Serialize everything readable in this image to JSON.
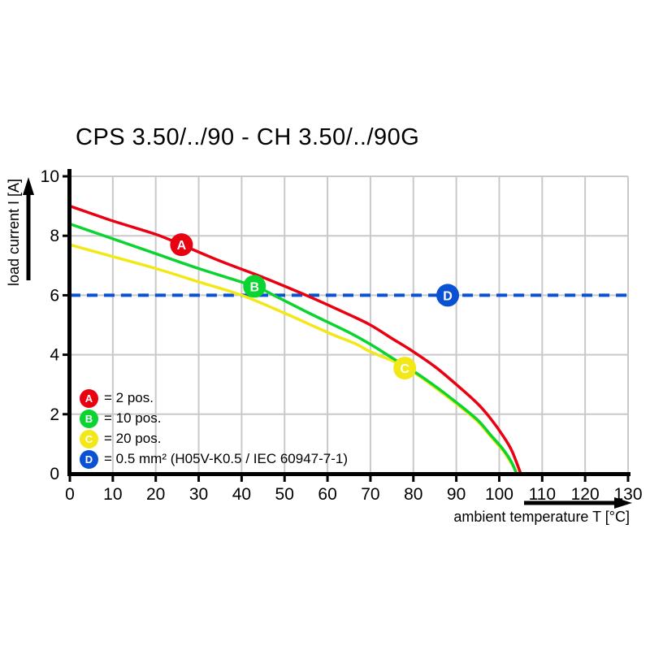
{
  "title": "CPS 3.50/../90 - CH 3.50/../90G",
  "colors": {
    "red": "#ea0011",
    "green": "#0ad42f",
    "yellow": "#f2e818",
    "blue": "#0b51d3",
    "grid": "#c9c9c9",
    "axis": "#000000",
    "text": "#000000",
    "marker_letter": "#ffffff"
  },
  "chart_data": {
    "type": "line",
    "title": "CPS 3.50/../90 - CH 3.50/../90G",
    "xlabel": "ambient temperature T [°C]",
    "ylabel": "load current I [A]",
    "xlim": [
      0,
      130
    ],
    "ylim": [
      0,
      10
    ],
    "xticks": [
      0,
      10,
      20,
      30,
      40,
      50,
      60,
      70,
      80,
      90,
      100,
      110,
      120,
      130
    ],
    "yticks": [
      0,
      2,
      4,
      6,
      8,
      10
    ],
    "grid": true,
    "legend_position": "lower-left-inside",
    "series": [
      {
        "name": "C",
        "label": "20 pos.",
        "color_key": "yellow",
        "style": "solid",
        "points": [
          [
            0,
            7.7
          ],
          [
            10,
            7.3
          ],
          [
            20,
            6.9
          ],
          [
            30,
            6.45
          ],
          [
            40,
            6.0
          ],
          [
            50,
            5.4
          ],
          [
            60,
            4.75
          ],
          [
            66.8,
            4.35
          ],
          [
            70,
            4.1
          ],
          [
            78,
            3.6
          ],
          [
            85,
            2.9
          ],
          [
            90,
            2.35
          ],
          [
            95,
            1.75
          ],
          [
            98,
            1.25
          ],
          [
            101,
            0.75
          ],
          [
            103,
            0.3
          ],
          [
            104.3,
            0
          ]
        ]
      },
      {
        "name": "B",
        "label": "10 pos.",
        "color_key": "green",
        "style": "solid",
        "points": [
          [
            0,
            8.4
          ],
          [
            10,
            7.9
          ],
          [
            20,
            7.4
          ],
          [
            30,
            6.9
          ],
          [
            43,
            6.3
          ],
          [
            47.5,
            6.0
          ],
          [
            55,
            5.45
          ],
          [
            60,
            5.1
          ],
          [
            65,
            4.75
          ],
          [
            70,
            4.35
          ],
          [
            75,
            3.9
          ],
          [
            80,
            3.45
          ],
          [
            85,
            2.95
          ],
          [
            90,
            2.4
          ],
          [
            95,
            1.8
          ],
          [
            98,
            1.3
          ],
          [
            101,
            0.8
          ],
          [
            103,
            0.35
          ],
          [
            104,
            0
          ]
        ]
      },
      {
        "name": "A",
        "label": "2 pos.",
        "color_key": "red",
        "style": "solid",
        "points": [
          [
            0,
            9.0
          ],
          [
            10,
            8.5
          ],
          [
            20,
            8.05
          ],
          [
            26,
            7.7
          ],
          [
            35,
            7.15
          ],
          [
            45,
            6.6
          ],
          [
            55,
            6.0
          ],
          [
            65,
            5.35
          ],
          [
            70,
            5.0
          ],
          [
            75,
            4.55
          ],
          [
            80,
            4.1
          ],
          [
            85,
            3.6
          ],
          [
            90,
            3.0
          ],
          [
            95,
            2.35
          ],
          [
            98,
            1.85
          ],
          [
            101,
            1.25
          ],
          [
            103,
            0.75
          ],
          [
            105,
            0
          ]
        ]
      },
      {
        "name": "D",
        "label": "0.5 mm² (H05V-K0.5 / IEC 60947-7-1)",
        "color_key": "blue",
        "style": "dashed",
        "points": [
          [
            0,
            6
          ],
          [
            130,
            6
          ]
        ]
      }
    ],
    "markers": [
      {
        "letter": "A",
        "x": 26,
        "y": 7.7,
        "color_key": "red"
      },
      {
        "letter": "B",
        "x": 43,
        "y": 6.3,
        "color_key": "green"
      },
      {
        "letter": "C",
        "x": 78,
        "y": 3.55,
        "color_key": "yellow"
      },
      {
        "letter": "D",
        "x": 88,
        "y": 6.0,
        "color_key": "blue"
      }
    ]
  },
  "legend": {
    "items": [
      {
        "letter": "A",
        "color_key": "red",
        "text": "= 2 pos."
      },
      {
        "letter": "B",
        "color_key": "green",
        "text": "= 10 pos."
      },
      {
        "letter": "C",
        "color_key": "yellow",
        "text": "= 20 pos."
      },
      {
        "letter": "D",
        "color_key": "blue",
        "text": "= 0.5 mm² (H05V-K0.5 / IEC 60947-7-1)"
      }
    ]
  }
}
